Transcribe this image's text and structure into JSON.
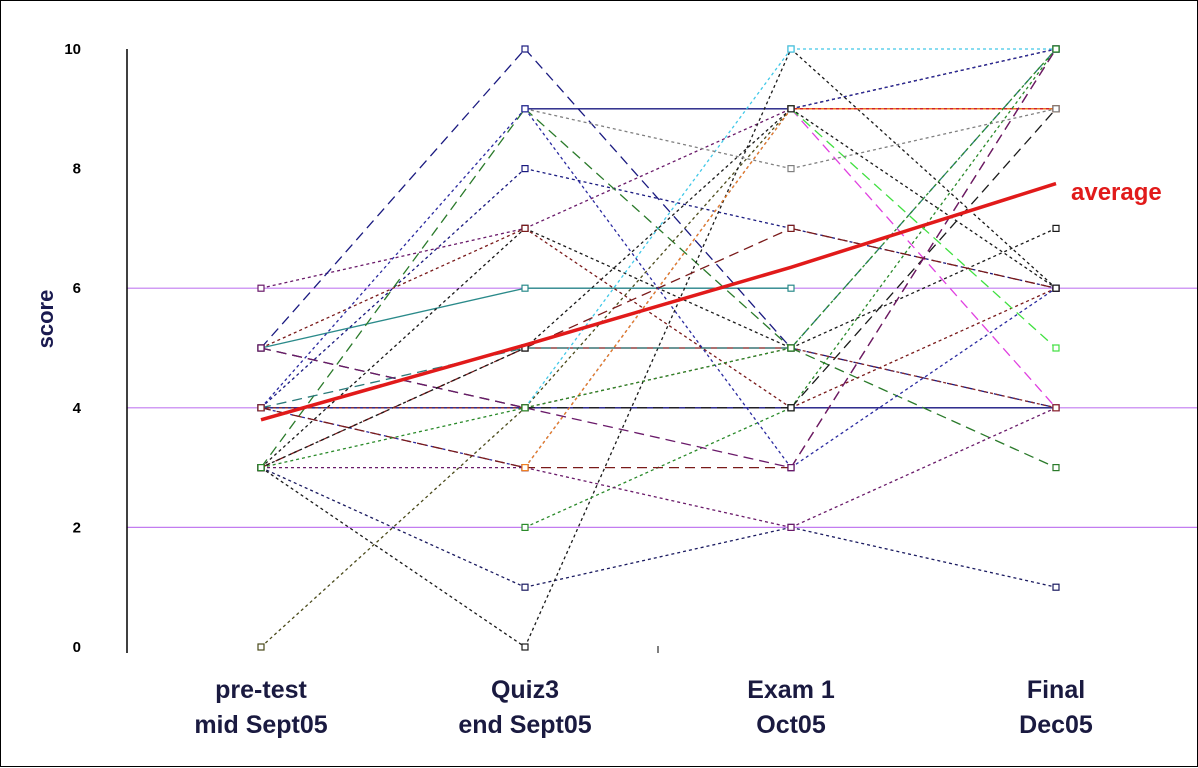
{
  "chart_data": {
    "type": "line",
    "ylabel": "score",
    "ylim": [
      0,
      10
    ],
    "yticks": [
      "0",
      "2",
      "4",
      "6",
      "8",
      "10"
    ],
    "gridlines": [
      2,
      4,
      6
    ],
    "grid_color": "#c27cf0",
    "categories": [
      "pre-test|mid Sept05",
      "Quiz3|end Sept05",
      "Exam 1|Oct05",
      "Final|Dec05"
    ],
    "average": {
      "label": "average",
      "color": "#e11a1a",
      "values": [
        3.8,
        5.05,
        6.35,
        7.75
      ]
    },
    "series": [
      {
        "color": "#1a1a80",
        "dash": "none",
        "values": [
          null,
          9,
          9,
          9
        ]
      },
      {
        "color": "#e11a1a",
        "dash": "none",
        "values": [
          null,
          null,
          9,
          9
        ]
      },
      {
        "color": "#1a1a80",
        "dash": "none",
        "values": [
          4,
          4,
          4,
          4
        ]
      },
      {
        "color": "#2a8a8a",
        "dash": "none",
        "values": [
          5,
          6,
          6,
          null
        ]
      },
      {
        "color": "#7a1a1a",
        "dash": "none",
        "values": [
          null,
          5,
          5,
          null
        ]
      },
      {
        "color": "#6a1a6a",
        "dash": "3,3",
        "values": [
          6,
          7,
          9,
          10
        ]
      },
      {
        "color": "#1a1a80",
        "dash": "3,3",
        "values": [
          4,
          8,
          7,
          6
        ]
      },
      {
        "color": "#1a1a80",
        "dash": "10,6",
        "values": [
          5,
          10,
          5,
          4
        ]
      },
      {
        "color": "#2a7a2a",
        "dash": "10,6",
        "values": [
          3,
          9,
          5,
          3
        ]
      },
      {
        "color": "#1a1a1a",
        "dash": "3,3",
        "values": [
          3,
          7,
          5,
          7
        ]
      },
      {
        "color": "#7a1a1a",
        "dash": "3,3",
        "values": [
          5,
          7,
          4,
          6
        ]
      },
      {
        "color": "#4a4a1a",
        "dash": "3,3",
        "values": [
          0,
          4,
          9,
          10
        ]
      },
      {
        "color": "#2a2aa0",
        "dash": "3,3",
        "values": [
          4,
          3,
          9,
          10
        ]
      },
      {
        "color": "#1a1a60",
        "dash": "3,3",
        "values": [
          3,
          1,
          2,
          1
        ]
      },
      {
        "color": "#1a1a1a",
        "dash": "3,3",
        "values": [
          3,
          0,
          10,
          6
        ]
      },
      {
        "color": "#2a8a2a",
        "dash": "3,3",
        "values": [
          null,
          2,
          4,
          10
        ]
      },
      {
        "color": "#1a1a1a",
        "dash": "10,6",
        "values": [
          5,
          4,
          4,
          9
        ]
      },
      {
        "color": "#7a1a1a",
        "dash": "10,6",
        "values": [
          4,
          3,
          3,
          10
        ]
      },
      {
        "color": "#6a1a6a",
        "dash": "3,3",
        "values": [
          3,
          3,
          2,
          4
        ]
      },
      {
        "color": "#40c8e8",
        "dash": "3,3",
        "values": [
          null,
          4,
          10,
          10
        ]
      },
      {
        "color": "#f08020",
        "dash": "3,3",
        "values": [
          null,
          3,
          9,
          9
        ]
      },
      {
        "color": "#e040e0",
        "dash": "10,6",
        "values": [
          null,
          null,
          9,
          4
        ]
      },
      {
        "color": "#40e040",
        "dash": "10,6",
        "values": [
          null,
          null,
          9,
          5
        ]
      },
      {
        "color": "#808080",
        "dash": "3,3",
        "values": [
          null,
          9,
          8,
          9
        ]
      },
      {
        "color": "#7a1a1a",
        "dash": "10,6",
        "values": [
          3,
          5,
          7,
          6
        ]
      },
      {
        "color": "#2a7a7a",
        "dash": "10,6",
        "values": [
          4,
          5,
          5,
          10
        ]
      },
      {
        "color": "#2a2aa0",
        "dash": "3,3",
        "values": [
          4,
          9,
          3,
          6
        ]
      },
      {
        "color": "#6a1a6a",
        "dash": "10,6",
        "values": [
          5,
          4,
          3,
          10
        ]
      },
      {
        "color": "#1a1a1a",
        "dash": "3,3",
        "values": [
          3,
          5,
          9,
          6
        ]
      },
      {
        "color": "#8a2a2a",
        "dash": "3,3",
        "values": [
          4,
          4,
          5,
          4
        ]
      },
      {
        "color": "#2a8a2a",
        "dash": "3,3",
        "values": [
          3,
          4,
          5,
          10
        ]
      }
    ]
  }
}
